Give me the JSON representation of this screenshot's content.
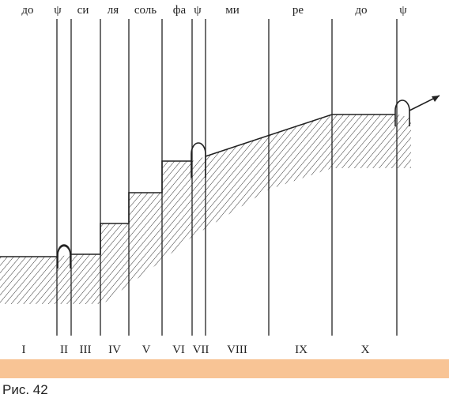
{
  "figure": {
    "top_labels": [
      "до",
      "ψ",
      "си",
      "ля",
      "соль",
      "фа",
      "ψ",
      "ми",
      "ре",
      "до",
      "ψ"
    ],
    "bottom_labels": [
      "I",
      "II",
      "III",
      "IV",
      "V",
      "VI",
      "VII",
      "VIII",
      "IX",
      "X"
    ],
    "caption": "Рис. 42"
  }
}
